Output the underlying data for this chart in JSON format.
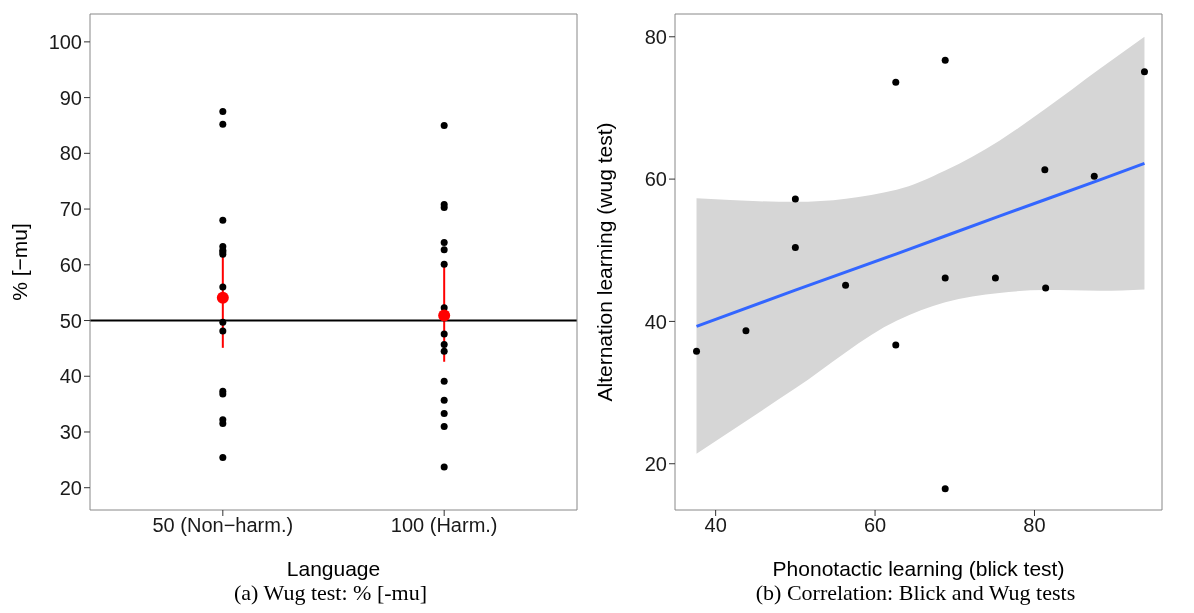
{
  "chart_data": [
    {
      "type": "scatter",
      "categories": [
        "50 (Non−harm.)",
        "100 (Harm.)"
      ],
      "xlabel": "Language",
      "ylabel": "% [−mu]",
      "ylim": [
        16,
        105
      ],
      "yticks": [
        20,
        30,
        40,
        50,
        60,
        70,
        80,
        90,
        100
      ],
      "marker": "circle",
      "ref_lines": [
        {
          "axis": "y",
          "value": 50,
          "color": "#000000"
        }
      ],
      "annotations": [
        "(a) Wug test: % [-mu]"
      ],
      "series": [
        {
          "color": "#000000",
          "x": [
            "50 (Non−harm.)",
            "50 (Non−harm.)",
            "50 (Non−harm.)",
            "50 (Non−harm.)",
            "50 (Non−harm.)",
            "50 (Non−harm.)",
            "50 (Non−harm.)",
            "50 (Non−harm.)",
            "50 (Non−harm.)",
            "50 (Non−harm.)",
            "50 (Non−harm.)",
            "50 (Non−harm.)",
            "50 (Non−harm.)",
            "50 (Non−harm.)",
            "50 (Non−harm.)",
            "100 (Harm.)",
            "100 (Harm.)",
            "100 (Harm.)",
            "100 (Harm.)",
            "100 (Harm.)",
            "100 (Harm.)",
            "100 (Harm.)",
            "100 (Harm.)",
            "100 (Harm.)",
            "100 (Harm.)",
            "100 (Harm.)",
            "100 (Harm.)",
            "100 (Harm.)",
            "100 (Harm.)",
            "100 (Harm.)"
          ],
          "values": [
            87.5,
            85.2,
            68.0,
            63.3,
            62.6,
            62.3,
            61.9,
            56.0,
            49.7,
            48.1,
            37.3,
            36.8,
            32.2,
            31.5,
            25.4,
            85.0,
            70.8,
            70.3,
            64.0,
            62.7,
            60.1,
            52.3,
            47.6,
            45.7,
            44.5,
            39.1,
            35.7,
            33.3,
            31.0,
            23.7
          ]
        },
        {
          "color": "#ff0000",
          "x": [
            "50 (Non−harm.)",
            "100 (Harm.)"
          ],
          "values": [
            54.1,
            50.9
          ],
          "errors": [
            [
              45.1,
              62.9
            ],
            [
              42.6,
              59.6
            ]
          ]
        }
      ]
    },
    {
      "type": "scatter",
      "xlabel": "Phonotactic learning (blick test)",
      "ylabel": "Alternation learning (wug test)",
      "xlim": [
        34.9,
        96
      ],
      "xticks": [
        40,
        60,
        80
      ],
      "ylim": [
        13.5,
        83.2
      ],
      "yticks": [
        20,
        40,
        60,
        80
      ],
      "marker": "circle",
      "annotations": [
        "(b) Correlation: Blick and Wug tests"
      ],
      "series": [
        {
          "type": "line",
          "marker": "none",
          "color": "#3366ff",
          "x": [
            37.6,
            50,
            62.7,
            68.8,
            75.6,
            81.3,
            88.2,
            93.8
          ],
          "values": [
            39.3,
            44.4,
            49.5,
            52.0,
            54.8,
            57.1,
            59.9,
            62.2
          ],
          "lower": [
            21.4,
            30.6,
            40.1,
            42.7,
            44.0,
            44.4,
            44.3,
            44.5
          ],
          "upper": [
            57.3,
            56.8,
            58.5,
            61.2,
            65.4,
            69.8,
            75.5,
            80.0
          ]
        },
        {
          "color": "#000000",
          "x": [
            37.6,
            43.8,
            50.0,
            50.0,
            56.3,
            62.6,
            62.6,
            68.8,
            68.8,
            75.1,
            81.3,
            81.4,
            87.5,
            93.8,
            68.8
          ],
          "values": [
            35.8,
            38.7,
            57.2,
            50.4,
            45.1,
            73.6,
            36.7,
            76.7,
            46.1,
            46.1,
            61.3,
            44.7,
            60.4,
            75.1,
            16.5
          ]
        }
      ]
    }
  ]
}
